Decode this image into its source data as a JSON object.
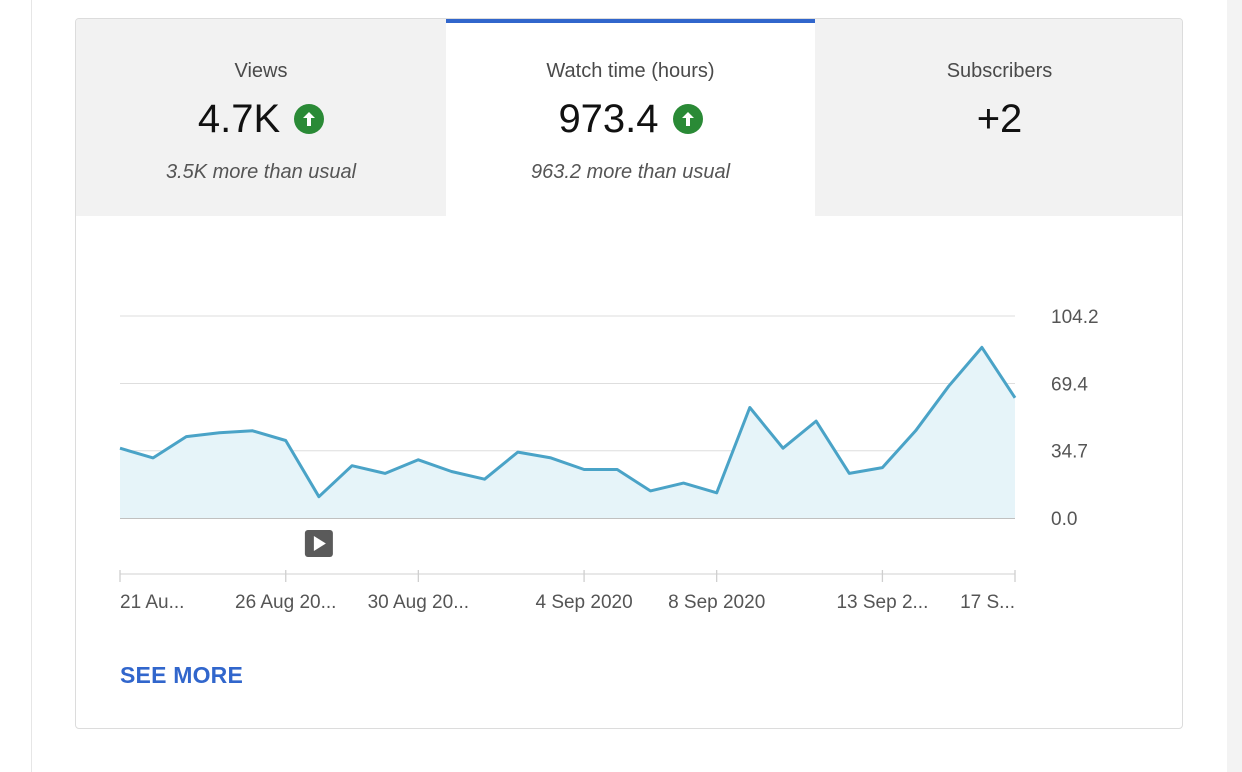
{
  "tabs": [
    {
      "label": "Views",
      "value": "4.7K",
      "trend": "up",
      "note": "3.5K more than usual"
    },
    {
      "label": "Watch time (hours)",
      "value": "973.4",
      "trend": "up",
      "note": "963.2 more than usual",
      "selected": true
    },
    {
      "label": "Subscribers",
      "value": "+2",
      "trend": "none",
      "note": ""
    }
  ],
  "trend_icon": "arrow-up-icon",
  "colors": {
    "accent": "#3166cc",
    "up_badge": "#2a8a36",
    "line": "#4aa3c7",
    "area": "#e6f4f9"
  },
  "see_more_label": "SEE MORE",
  "chart_data": {
    "type": "area",
    "y_ticks": [
      "104.2",
      "69.4",
      "34.7",
      "0.0"
    ],
    "y_tick_values": [
      104.2,
      69.4,
      34.7,
      0.0
    ],
    "ylim": [
      0,
      104.2
    ],
    "x_tick_labels": [
      "21 Au...",
      "26 Aug 20...",
      "30 Aug 20...",
      "4 Sep 2020",
      "8 Sep 2020",
      "13 Sep 2...",
      "17 S..."
    ],
    "x_tick_days": [
      0,
      5,
      9,
      14,
      18,
      23,
      27
    ],
    "series": [
      {
        "values": [
          36,
          31,
          42,
          44,
          45,
          40,
          11,
          27,
          23,
          30,
          24,
          20,
          34,
          31,
          25,
          25,
          14,
          18,
          13,
          57,
          36,
          50,
          23,
          26,
          45,
          68,
          88,
          62
        ]
      }
    ],
    "grid": true,
    "legend": "none",
    "marker": "video-marker"
  }
}
